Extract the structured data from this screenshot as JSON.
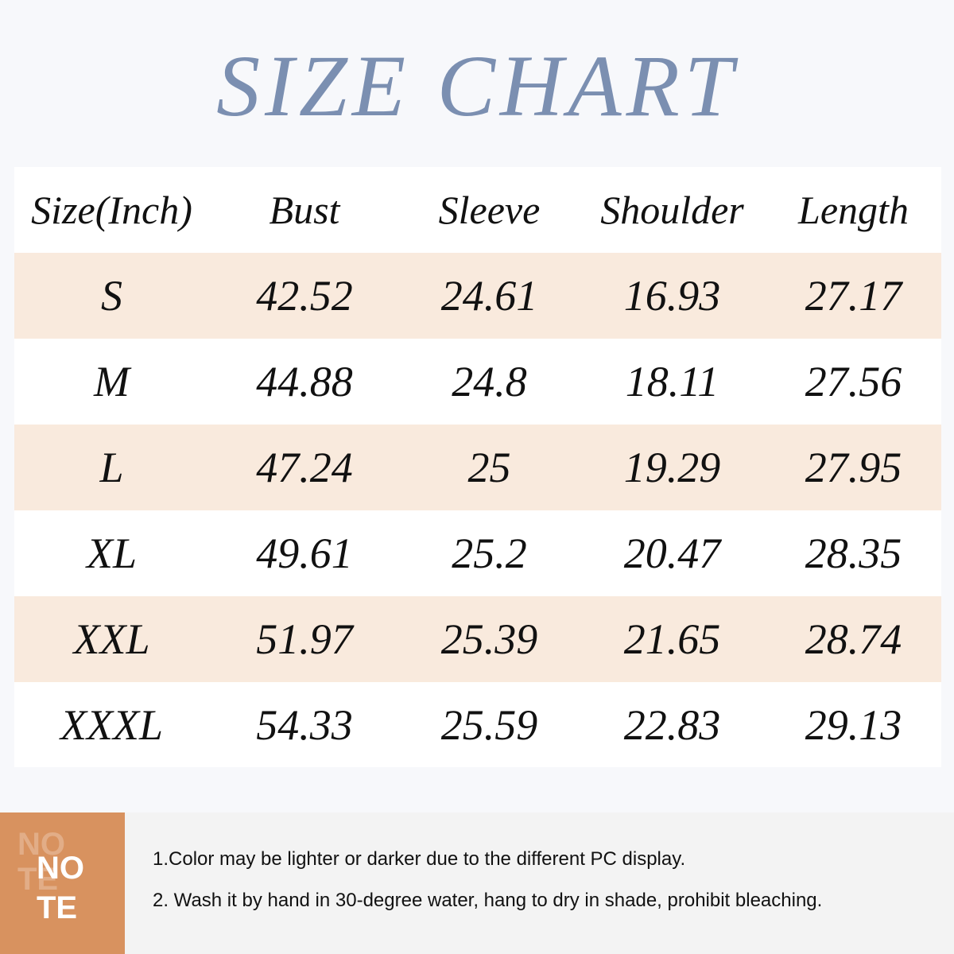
{
  "title": "SIZE CHART",
  "table": {
    "headers": [
      "Size(Inch)",
      "Bust",
      "Sleeve",
      "Shoulder",
      "Length"
    ],
    "rows": [
      [
        "S",
        "42.52",
        "24.61",
        "16.93",
        "27.17"
      ],
      [
        "M",
        "44.88",
        "24.8",
        "18.11",
        "27.56"
      ],
      [
        "L",
        "47.24",
        "25",
        "19.29",
        "27.95"
      ],
      [
        "XL",
        "49.61",
        "25.2",
        "20.47",
        "28.35"
      ],
      [
        "XXL",
        "51.97",
        "25.39",
        "21.65",
        "28.74"
      ],
      [
        "XXXL",
        "54.33",
        "25.59",
        "22.83",
        "29.13"
      ]
    ],
    "shade_color": "#f9eadd"
  },
  "note": {
    "label_line1": "NO",
    "label_line2": "TE",
    "label_ghost": "NOTE",
    "box_color": "#d8925f",
    "items": [
      "1.Color may be lighter or darker due to the different PC display.",
      "2. Wash it by hand in 30-degree water, hang to dry in shade, prohibit bleaching."
    ]
  }
}
